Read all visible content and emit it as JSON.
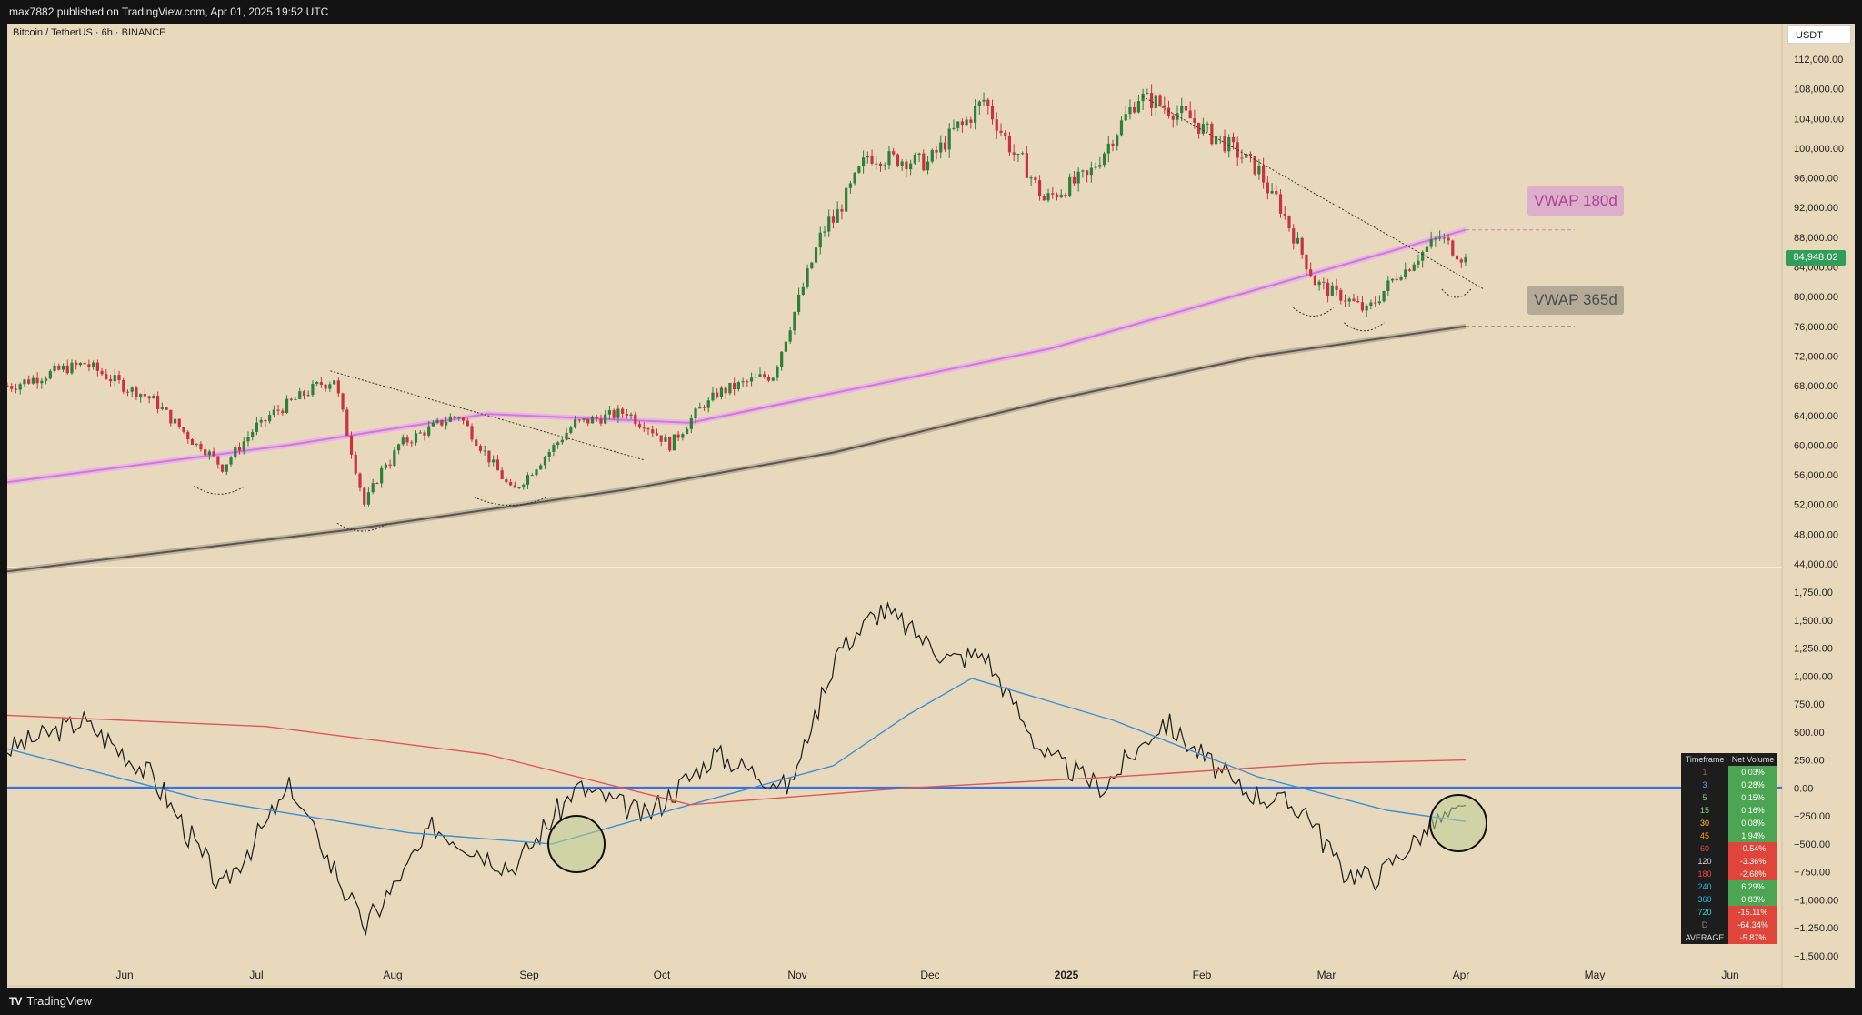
{
  "header": {
    "published": "max7882 published on TradingView.com, Apr 01, 2025 19:52 UTC"
  },
  "chart_header": {
    "symbol": "Bitcoin / TetherUS · 6h · BINANCE",
    "currency": "USDT"
  },
  "price_tag": {
    "value": "84,948.02",
    "color": "#2e9e58"
  },
  "vwap_labels": {
    "vwap180": "VWAP 180d",
    "vwap365": "VWAP 365d"
  },
  "footer": {
    "brand": "TradingView"
  },
  "colors": {
    "background": "#e8d8bc",
    "up": "#2f7f3c",
    "down": "#c7343f",
    "vwap180": "#d07bd0",
    "vwap365": "#5c554d",
    "ma_blue": "#3a8fd6",
    "ma_red": "#e05555",
    "zero_line": "#3c6fe0"
  },
  "chart_data": [
    {
      "type": "candlestick",
      "title": "",
      "y_unit": "USDT",
      "x_tick_labels": [
        "Jun",
        "Jul",
        "Aug",
        "Sep",
        "Oct",
        "Nov",
        "Dec",
        "2025",
        "Feb",
        "Mar",
        "Apr",
        "May",
        "Jun"
      ],
      "y_tick_labels": [
        "112,000.00",
        "108,000.00",
        "104,000.00",
        "100,000.00",
        "96,000.00",
        "92,000.00",
        "88,000.00",
        "84,000.00",
        "80,000.00",
        "76,000.00",
        "72,000.00",
        "68,000.00",
        "64,000.00",
        "60,000.00",
        "56,000.00",
        "52,000.00",
        "48,000.00",
        "44,000.00"
      ],
      "ylim": [
        43000,
        114000
      ],
      "price_approx": {
        "x": [
          "2024-05-20",
          "2024-06-05",
          "2024-06-20",
          "2024-07-05",
          "2024-07-15",
          "2024-07-29",
          "2024-08-05",
          "2024-08-12",
          "2024-08-25",
          "2024-09-06",
          "2024-09-20",
          "2024-10-01",
          "2024-10-10",
          "2024-10-20",
          "2024-11-01",
          "2024-11-12",
          "2024-11-22",
          "2024-12-05",
          "2024-12-17",
          "2024-12-30",
          "2025-01-08",
          "2025-01-20",
          "2025-01-31",
          "2025-02-15",
          "2025-02-27",
          "2025-03-10",
          "2025-03-20",
          "2025-03-26",
          "2025-04-01"
        ],
        "y": [
          68000,
          71000,
          66000,
          57000,
          64000,
          69000,
          52000,
          60000,
          64000,
          54000,
          63000,
          64500,
          60000,
          67000,
          69500,
          88000,
          99000,
          98000,
          106500,
          93000,
          96000,
          107000,
          104000,
          97000,
          82000,
          78000,
          85000,
          88000,
          84948
        ]
      },
      "series": [
        {
          "name": "VWAP 180d",
          "x": [
            "2024-05-20",
            "2024-07-20",
            "2024-09-01",
            "2024-10-15",
            "2024-11-15",
            "2025-01-01",
            "2025-02-15",
            "2025-04-01"
          ],
          "y": [
            55000,
            60000,
            64200,
            63000,
            67000,
            73000,
            81000,
            89000
          ]
        },
        {
          "name": "VWAP 365d",
          "x": [
            "2024-05-20",
            "2024-08-01",
            "2024-10-01",
            "2024-11-15",
            "2025-01-01",
            "2025-02-15",
            "2025-04-01"
          ],
          "y": [
            43000,
            48500,
            54000,
            59000,
            66000,
            72000,
            76000
          ]
        }
      ],
      "annotations": [
        "VWAP 180d",
        "VWAP 365d"
      ]
    },
    {
      "type": "line",
      "title": "",
      "y_tick_labels": [
        "1,750.00",
        "1,500.00",
        "1,250.00",
        "1,000.00",
        "750.00",
        "500.00",
        "250.00",
        "0.00",
        "−250.00",
        "−500.00",
        "−750.00",
        "−1,000.00",
        "−1,250.00",
        "−1,500.00"
      ],
      "ylim": [
        -1560,
        1820
      ],
      "series": [
        {
          "x": [
            "2024-05-20",
            "2024-06-05",
            "2024-06-20",
            "2024-07-05",
            "2024-07-20",
            "2024-08-05",
            "2024-08-20",
            "2024-09-06",
            "2024-09-20",
            "2024-10-05",
            "2024-10-20",
            "2024-11-05",
            "2024-11-15",
            "2024-11-25",
            "2024-12-10",
            "2024-12-17",
            "2024-12-30",
            "2025-01-12",
            "2025-01-25",
            "2025-02-10",
            "2025-02-25",
            "2025-03-05",
            "2025-03-12",
            "2025-03-25",
            "2025-04-01"
          ],
          "y": [
            350,
            600,
            100,
            -900,
            0,
            -1250,
            -350,
            -720,
            10,
            -250,
            300,
            0,
            1200,
            1600,
            1150,
            1200,
            300,
            0,
            600,
            0,
            -200,
            -750,
            -800,
            -300,
            -200
          ]
        },
        {
          "x": [
            "2024-05-20",
            "2024-07-01",
            "2024-08-15",
            "2024-09-15",
            "2024-10-15",
            "2024-11-15",
            "2024-12-01",
            "2024-12-15",
            "2025-01-15",
            "2025-02-15",
            "2025-03-15",
            "2025-04-01"
          ],
          "y": [
            350,
            -100,
            -400,
            -500,
            -150,
            200,
            650,
            980,
            600,
            100,
            -200,
            -300
          ]
        },
        {
          "x": [
            "2024-05-20",
            "2024-07-15",
            "2024-09-01",
            "2024-10-15",
            "2024-12-01",
            "2025-01-15",
            "2025-03-01",
            "2025-04-01"
          ],
          "y": [
            650,
            550,
            300,
            -150,
            0,
            100,
            220,
            250
          ]
        }
      ],
      "table": {
        "headers": [
          "Timeframe",
          "Net Volume"
        ],
        "rows": [
          [
            "1",
            "0.03%"
          ],
          [
            "3",
            "0.28%"
          ],
          [
            "5",
            "0.15%"
          ],
          [
            "15",
            "0.16%"
          ],
          [
            "30",
            "0.08%"
          ],
          [
            "45",
            "1.94%"
          ],
          [
            "60",
            "-0.54%"
          ],
          [
            "120",
            "-3.36%"
          ],
          [
            "180",
            "-2.68%"
          ],
          [
            "240",
            "6.29%"
          ],
          [
            "360",
            "0.83%"
          ],
          [
            "720",
            "-15.11%"
          ],
          [
            "D",
            "-64.34%"
          ],
          [
            "AVERAGE",
            "-5.87%"
          ]
        ]
      }
    }
  ]
}
